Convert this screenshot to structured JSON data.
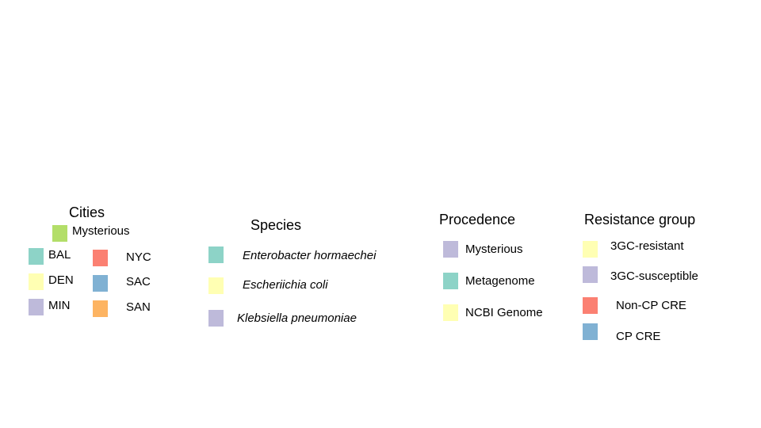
{
  "cities": {
    "title": "Cities",
    "items": [
      {
        "label": "Mysterious",
        "color": "#b3de69"
      },
      {
        "label": "BAL",
        "color": "#8dd3c7"
      },
      {
        "label": "DEN",
        "color": "#ffffb3"
      },
      {
        "label": "MIN",
        "color": "#bebada"
      },
      {
        "label": "NYC",
        "color": "#fb8072"
      },
      {
        "label": "SAC",
        "color": "#80b1d3"
      },
      {
        "label": "SAN",
        "color": "#fdb462"
      }
    ]
  },
  "species": {
    "title": "Species",
    "items": [
      {
        "label": "Enterobacter hormaechei",
        "color": "#8dd3c7"
      },
      {
        "label": "Escheriichia coli",
        "color": "#ffffb3"
      },
      {
        "label": "Klebsiella pneumoniae",
        "color": "#bebada"
      }
    ]
  },
  "procedence": {
    "title": "Procedence",
    "items": [
      {
        "label": "Mysterious",
        "color": "#bebada"
      },
      {
        "label": "Metagenome",
        "color": "#8dd3c7"
      },
      {
        "label": "NCBI Genome",
        "color": "#ffffb3"
      }
    ]
  },
  "resistance": {
    "title": "Resistance group",
    "items": [
      {
        "label": "3GC-resistant",
        "color": "#ffffb3"
      },
      {
        "label": "3GC-susceptible",
        "color": "#bebada"
      },
      {
        "label": "Non-CP CRE",
        "color": "#fb8072"
      },
      {
        "label": "CP CRE",
        "color": "#80b1d3"
      }
    ]
  }
}
